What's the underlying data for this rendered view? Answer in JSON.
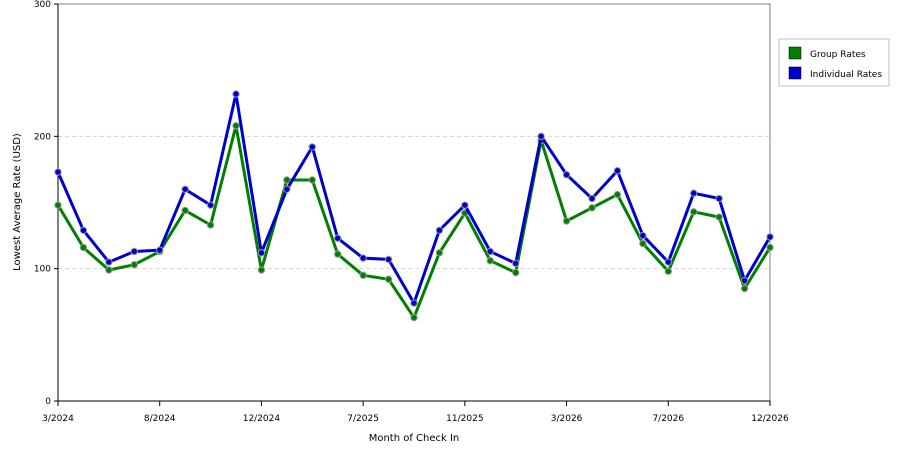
{
  "chart_data": {
    "type": "line",
    "title": "",
    "xlabel": "Month of Check In",
    "ylabel": "Lowest Average Rate (USD)",
    "ylim": [
      0,
      300
    ],
    "yticks": [
      0,
      100,
      200,
      300
    ],
    "ytick_labels": [
      "0",
      "100",
      "200",
      "300"
    ],
    "grid": true,
    "legend_position": "right",
    "x_tick_labels": [
      {
        "index": 0,
        "label": "3/2024"
      },
      {
        "index": 4,
        "label": "8/2024"
      },
      {
        "index": 8,
        "label": "12/2024"
      },
      {
        "index": 12,
        "label": "7/2025"
      },
      {
        "index": 16,
        "label": "11/2025"
      },
      {
        "index": 20,
        "label": "3/2026"
      },
      {
        "index": 24,
        "label": "7/2026"
      },
      {
        "index": 28,
        "label": "12/2026"
      }
    ],
    "series": [
      {
        "name": "Group Rates",
        "color": "#008000",
        "values": [
          148,
          116,
          99,
          103,
          113,
          144,
          133,
          208,
          99,
          167,
          167,
          111,
          95,
          92,
          63,
          112,
          142,
          106,
          97,
          197,
          136,
          146,
          156,
          119,
          98,
          143,
          139,
          85,
          116
        ]
      },
      {
        "name": "Individual Rates",
        "color": "#0000cc",
        "values": [
          173,
          129,
          105,
          113,
          114,
          160,
          148,
          232,
          112,
          160,
          192,
          123,
          108,
          107,
          74,
          129,
          148,
          113,
          104,
          200,
          171,
          153,
          174,
          125,
          105,
          157,
          153,
          91,
          124
        ]
      }
    ]
  }
}
